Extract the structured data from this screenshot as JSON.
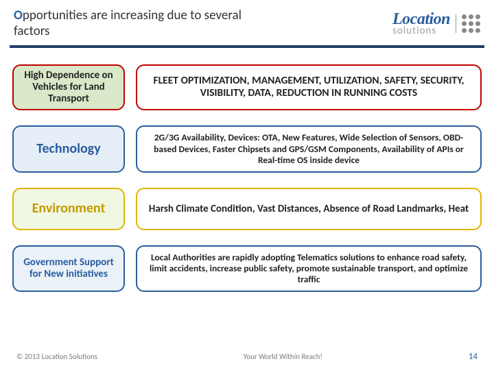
{
  "header": {
    "title_accent": "O",
    "title_rest": "pportunities are increasing due to several factors"
  },
  "logo": {
    "top": "Location",
    "bottom": "solutions"
  },
  "rows": [
    {
      "label": "High Dependence on Vehicles for Land Transport",
      "body": "FLEET OPTIMIZATION, MANAGEMENT, UTILIZATION, SAFETY, SECURITY, VISIBILITY, DATA, REDUCTION IN RUNNING COSTS",
      "label_bg": "#d9e8c8",
      "border": "#c00000",
      "label_color": "#222222"
    },
    {
      "label": "Technology",
      "body": "2G/3G Availability, Devices: OTA, New Features, Wide Selection of Sensors, OBD-based Devices, Faster Chipsets and GPS/GSM Components, Availability of APIs or Real-time OS inside device",
      "label_bg": "#e6eef7",
      "border": "#2a5d9e",
      "label_color": "#2a5d9e"
    },
    {
      "label": "Environment",
      "body": "Harsh Climate Condition, Vast Distances, Absence of Road Landmarks, Heat",
      "label_bg": "#f0f7e3",
      "border": "#e0b400",
      "label_color": "#c49a00"
    },
    {
      "label": "Government Support for New initiatives",
      "body": "Local Authorities are rapidly adopting Telematics solutions to enhance road safety, limit accidents, increase public safety, promote sustainable transport, and optimize traffic",
      "label_bg": "#eaf1f9",
      "border": "#2a5d9e",
      "label_color": "#2a5d9e"
    }
  ],
  "footer": {
    "copyright": "© 2013 Location Solutions",
    "tagline": "Your World Within Reach!",
    "page": "14"
  }
}
